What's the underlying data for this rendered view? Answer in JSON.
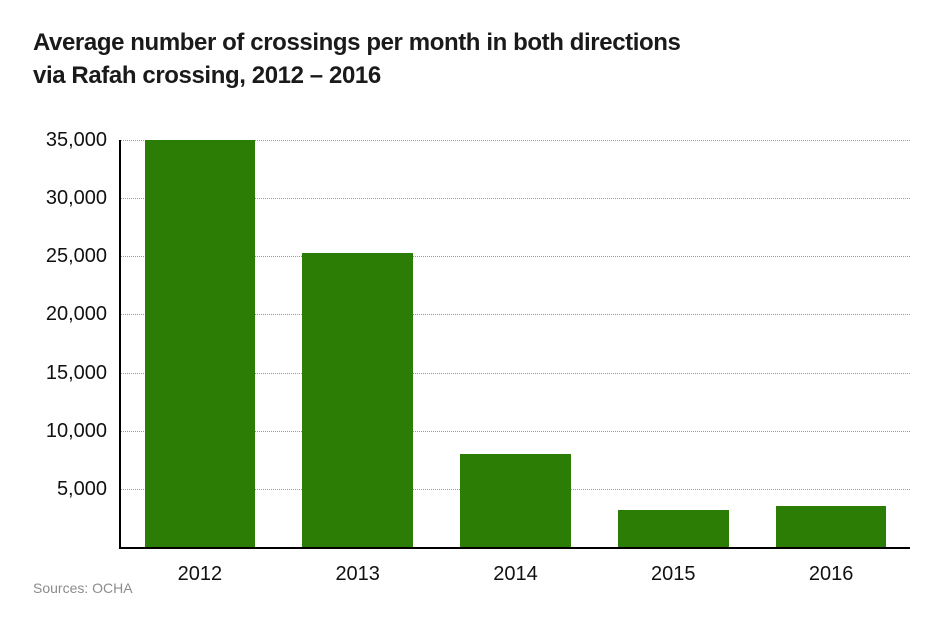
{
  "title": {
    "line1": "Average number of crossings per month in both directions",
    "line2": "via Rafah crossing, 2012 – 2016"
  },
  "source_note": "Sources: OCHA",
  "colors": {
    "bar": "#2b7d06",
    "axis": "#000000",
    "gridline": "#999999",
    "title_text": "#1a1a1a",
    "tick_text": "#111111",
    "source_text": "#8c8c8c",
    "background": "#ffffff"
  },
  "chart_data": {
    "type": "bar",
    "title": "Average number of crossings per month in both directions via Rafah crossing, 2012 – 2016",
    "categories": [
      "2012",
      "2013",
      "2014",
      "2015",
      "2016"
    ],
    "values": [
      35000,
      25300,
      8000,
      3200,
      3500
    ],
    "xlabel": "",
    "ylabel": "",
    "ylim": [
      0,
      35000
    ],
    "yticks": [
      5000,
      10000,
      15000,
      20000,
      25000,
      30000,
      35000
    ],
    "ytick_labels": [
      "5,000",
      "10,000",
      "15,000",
      "20,000",
      "25,000",
      "30,000",
      "35,000"
    ],
    "grid": "horizontal-dotted",
    "legend": "none",
    "bar_color": "#2b7d06",
    "source": "Sources: OCHA"
  }
}
